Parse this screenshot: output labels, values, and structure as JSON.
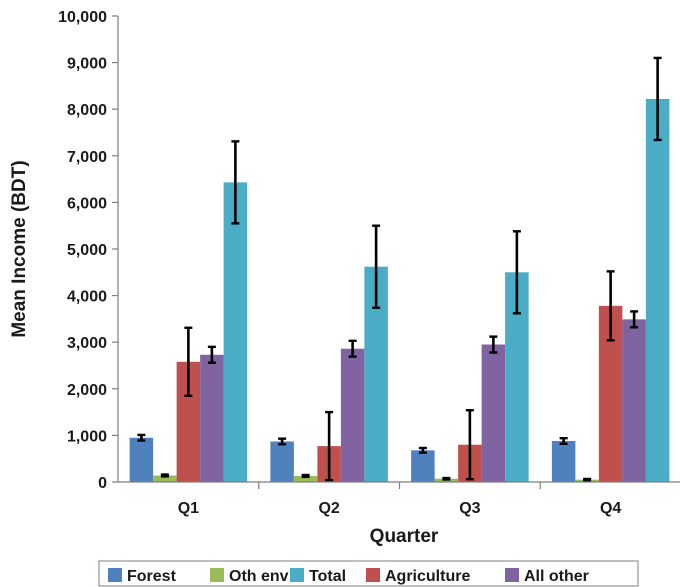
{
  "chart_data": {
    "type": "bar",
    "title": "",
    "xlabel": "Quarter",
    "ylabel": "Mean Income  (BDT)",
    "ylim": [
      0,
      10000
    ],
    "yticks": [
      0,
      1000,
      2000,
      3000,
      4000,
      5000,
      6000,
      7000,
      8000,
      9000,
      10000
    ],
    "ytick_labels": [
      "0",
      "1,000",
      "2,000",
      "3,000",
      "4,000",
      "5,000",
      "6,000",
      "7,000",
      "8,000",
      "9,000",
      "10,000"
    ],
    "categories": [
      "Q1",
      "Q2",
      "Q3",
      "Q4"
    ],
    "grid": false,
    "legend_position": "bottom",
    "series": [
      {
        "name": "Forest",
        "color": "#4F81BD",
        "values": [
          950,
          870,
          680,
          880
        ],
        "error": [
          60,
          60,
          50,
          60
        ]
      },
      {
        "name": "Oth env",
        "color": "#9BBB59",
        "values": [
          140,
          130,
          70,
          50
        ],
        "error": [
          20,
          20,
          15,
          15
        ]
      },
      {
        "name": "Agriculture",
        "color": "#C0504D",
        "values": [
          2580,
          770,
          800,
          3780
        ],
        "error": [
          730,
          730,
          740,
          740
        ]
      },
      {
        "name": "All other",
        "color": "#8064A2",
        "values": [
          2730,
          2860,
          2950,
          3490
        ],
        "error": [
          170,
          170,
          170,
          170
        ]
      },
      {
        "name": "Total",
        "color": "#4BACC6",
        "values": [
          6430,
          4620,
          4500,
          8220
        ],
        "error": [
          880,
          880,
          880,
          880
        ]
      }
    ],
    "legend_order": [
      "Forest",
      "Oth env",
      "Total",
      "Agriculture",
      "All other"
    ]
  }
}
